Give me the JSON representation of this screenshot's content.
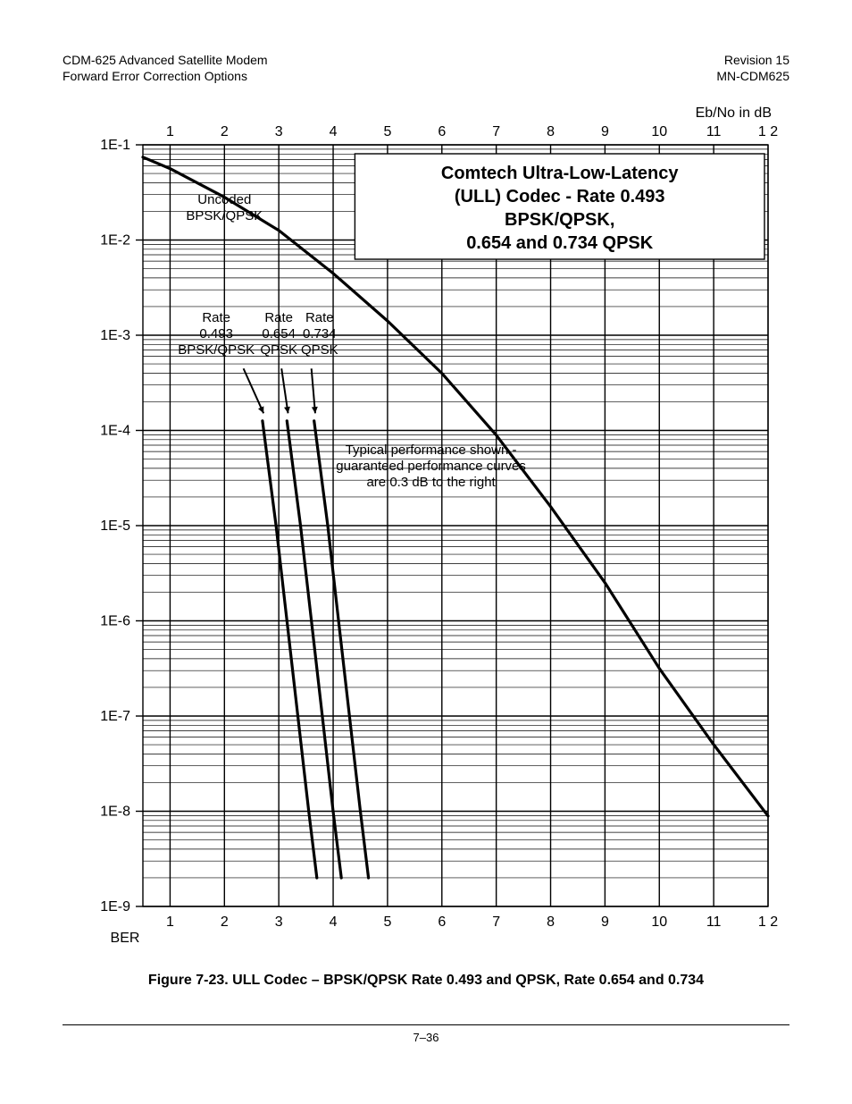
{
  "header": {
    "left_line1": "CDM-625 Advanced Satellite Modem",
    "left_line2": "Forward Error Correction Options",
    "right_line1": "Revision 15",
    "right_line2": "MN-CDM625"
  },
  "footer": {
    "page_number": "7–36"
  },
  "caption": "Figure 7-23. ULL Codec – BPSK/QPSK Rate 0.493 and QPSK, Rate 0.654 and 0.734",
  "chart": {
    "type": "line",
    "x_axis": {
      "label": "Eb/No in dB",
      "min": 0.5,
      "max": 12,
      "ticks": [
        1,
        2,
        3,
        4,
        5,
        6,
        7,
        8,
        9,
        10,
        11,
        12
      ],
      "tick_labels": [
        "1",
        "2",
        "3",
        "4",
        "5",
        "6",
        "7",
        "8",
        "9",
        "10",
        "11",
        "1 2"
      ]
    },
    "y_axis": {
      "label": "BER",
      "scale": "log",
      "min_exp": -9,
      "max_exp": -1,
      "tick_labels": [
        "1E-1",
        "1E-2",
        "1E-3",
        "1E-4",
        "1E-5",
        "1E-6",
        "1E-7",
        "1E-8",
        "1E-9"
      ]
    },
    "colors": {
      "background": "#ffffff",
      "grid": "#000000",
      "curve": "#000000",
      "text": "#000000"
    },
    "line_width_main": 3.2,
    "line_width_grid_major": 1.4,
    "line_width_grid_minor": 0.7,
    "title_box": {
      "lines": [
        "Comtech Ultra-Low-Latency",
        "(ULL) Codec - Rate 0.493",
        "BPSK/QPSK,",
        "0.654 and 0.734 QPSK"
      ],
      "font_size": 20,
      "font_weight": "bold"
    },
    "annotations": {
      "uncoded": {
        "line1": "Uncoded",
        "line2": "BPSK/QPSK"
      },
      "rate_0493": {
        "line1": "Rate",
        "line2": "0.493",
        "line3": "BPSK/QPSK"
      },
      "rate_0654": {
        "line1": "Rate",
        "line2": "0.654",
        "line3": "QPSK"
      },
      "rate_0734": {
        "line1": "Rate",
        "line2": "0.734",
        "line3": "QPSK"
      },
      "typical": {
        "line1": "Typical performance shown -",
        "line2": "guaranteed performance curves",
        "line3": "are 0.3 dB to the right"
      }
    },
    "series": {
      "uncoded": {
        "points": [
          [
            0.5,
            -1.13
          ],
          [
            1.0,
            -1.25
          ],
          [
            2.0,
            -1.55
          ],
          [
            3.0,
            -1.9
          ],
          [
            4.0,
            -2.35
          ],
          [
            5.0,
            -2.85
          ],
          [
            6.0,
            -3.4
          ],
          [
            7.0,
            -4.05
          ],
          [
            8.0,
            -4.8
          ],
          [
            9.0,
            -5.6
          ],
          [
            10.0,
            -6.5
          ],
          [
            11.0,
            -7.3
          ],
          [
            12.0,
            -8.05
          ]
        ]
      },
      "rate_0493": {
        "points": [
          [
            2.7,
            -3.9
          ],
          [
            2.95,
            -5.0
          ],
          [
            3.15,
            -6.0
          ],
          [
            3.35,
            -7.0
          ],
          [
            3.55,
            -8.0
          ],
          [
            3.7,
            -8.7
          ]
        ]
      },
      "rate_0654": {
        "points": [
          [
            3.15,
            -3.9
          ],
          [
            3.4,
            -5.0
          ],
          [
            3.6,
            -6.0
          ],
          [
            3.8,
            -7.0
          ],
          [
            4.0,
            -8.0
          ],
          [
            4.15,
            -8.7
          ]
        ]
      },
      "rate_0734": {
        "points": [
          [
            3.65,
            -3.9
          ],
          [
            3.9,
            -5.0
          ],
          [
            4.1,
            -6.0
          ],
          [
            4.3,
            -7.0
          ],
          [
            4.5,
            -8.0
          ],
          [
            4.65,
            -8.7
          ]
        ]
      }
    }
  }
}
